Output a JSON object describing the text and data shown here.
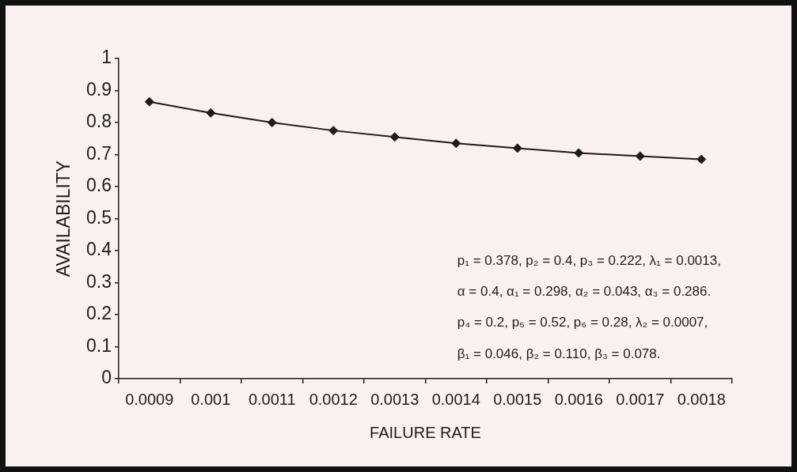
{
  "chart_data": {
    "type": "line",
    "xlabel": "FAILURE RATE",
    "ylabel": "AVAILABILITY",
    "categories": [
      "0.0009",
      "0.001",
      "0.0011",
      "0.0012",
      "0.0013",
      "0.0014",
      "0.0015",
      "0.0016",
      "0.0017",
      "0.0018"
    ],
    "series": [
      {
        "color": "#1c1c1c",
        "values": [
          0.865,
          0.83,
          0.8,
          0.775,
          0.755,
          0.735,
          0.72,
          0.705,
          0.695,
          0.685
        ]
      }
    ],
    "ylim": [
      0,
      1
    ],
    "yticks": [
      0,
      0.1,
      0.2,
      0.3,
      0.4,
      0.5,
      0.6,
      0.7,
      0.8,
      0.9,
      1
    ],
    "marker": "diamond",
    "line_style": "solid",
    "annotations": [
      "p₁ = 0.378, p₂ = 0.4, p₃ = 0.222, λ₁ = 0.0013,",
      "α = 0.4, α₁ = 0.298, α₂ = 0.043, α₃ = 0.286.",
      "p₄ = 0.2, p₅ = 0.52, p₆ = 0.28, λ₂ = 0.0007,",
      "β₁ = 0.046, β₂ = 0.110, β₃ = 0.078."
    ]
  }
}
